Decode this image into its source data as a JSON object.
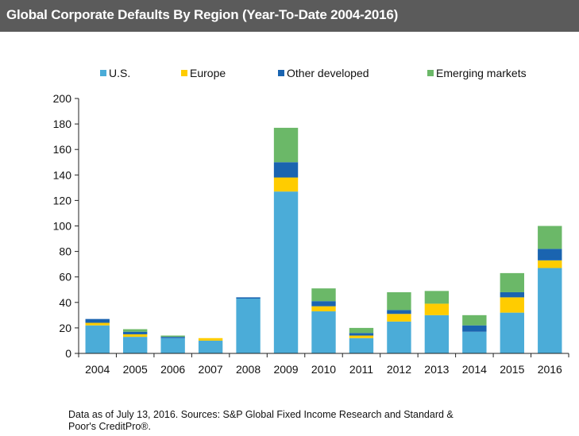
{
  "title": "Global Corporate Defaults By Region (Year-To-Date 2004-2016)",
  "source_line_1": "Data as of July 13, 2016. Sources: S&P Global Fixed Income Research and Standard  &",
  "source_line_2": "Poor's CreditPro®.",
  "colors": {
    "title_bg": "#5b5b5b",
    "us": "#4bacd8",
    "europe": "#ffcc00",
    "other_developed": "#1a64b0",
    "emerging": "#6bb868"
  },
  "chart_data": {
    "type": "bar",
    "stacked": true,
    "title": "Global Corporate Defaults By Region (Year-To-Date 2004-2016)",
    "xlabel": "",
    "ylabel": "",
    "ylim": [
      0,
      200
    ],
    "yticks": [
      "0",
      "20",
      "40",
      "60",
      "80",
      "100",
      "120",
      "140",
      "160",
      "180",
      "200"
    ],
    "grid": false,
    "legend_position": "top",
    "categories": [
      "2004",
      "2005",
      "2006",
      "2007",
      "2008",
      "2009",
      "2010",
      "2011",
      "2012",
      "2013",
      "2014",
      "2015",
      "2016"
    ],
    "series": [
      {
        "name": "U.S.",
        "color": "#4bacd8",
        "values": [
          22,
          13,
          12,
          10,
          43,
          127,
          33,
          12,
          25,
          30,
          17,
          32,
          67
        ]
      },
      {
        "name": "Europe",
        "color": "#ffcc00",
        "values": [
          2,
          2,
          0,
          2,
          0,
          11,
          4,
          2,
          6,
          9,
          0,
          12,
          6
        ]
      },
      {
        "name": "Other developed",
        "color": "#1a64b0",
        "values": [
          3,
          2,
          1,
          0,
          1,
          12,
          4,
          2,
          3,
          0,
          5,
          4,
          9
        ]
      },
      {
        "name": "Emerging markets",
        "color": "#6bb868",
        "values": [
          0,
          2,
          1,
          0,
          0,
          27,
          10,
          4,
          14,
          10,
          8,
          15,
          18
        ]
      }
    ]
  }
}
